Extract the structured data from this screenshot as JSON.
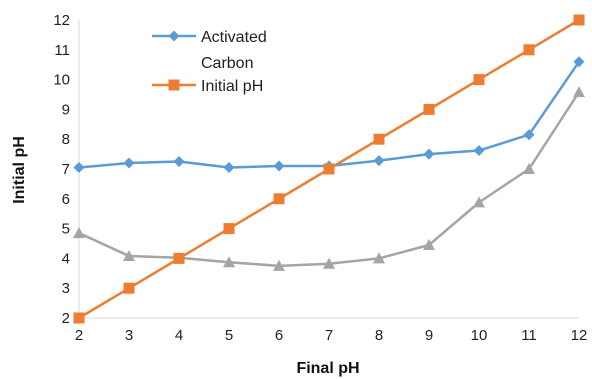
{
  "chart_data": {
    "type": "line",
    "xlabel": "Final pH",
    "ylabel": "Initial pH",
    "x": [
      2,
      3,
      4,
      5,
      6,
      7,
      8,
      9,
      10,
      11,
      12
    ],
    "xlim": [
      2,
      12
    ],
    "ylim": [
      2,
      12
    ],
    "x_ticks": [
      "2",
      "3",
      "4",
      "5",
      "6",
      "7",
      "8",
      "9",
      "10",
      "11",
      "12"
    ],
    "y_ticks": [
      "2",
      "3",
      "4",
      "5",
      "6",
      "7",
      "8",
      "9",
      "10",
      "11",
      "12"
    ],
    "grid": false,
    "legend_position": "top-left",
    "series": [
      {
        "name": "Activated Carbon",
        "legend_lines": [
          "Activated",
          "Carbon"
        ],
        "color": "#5B9BD5",
        "marker": "diamond",
        "values": [
          7.05,
          7.2,
          7.25,
          7.05,
          7.1,
          7.1,
          7.28,
          7.5,
          7.62,
          8.15,
          10.6
        ]
      },
      {
        "name": "Initial pH",
        "legend_lines": [
          "Initial pH"
        ],
        "color": "#ED7D31",
        "marker": "square",
        "values": [
          2,
          3,
          4,
          5,
          6,
          7,
          8,
          9,
          10,
          11,
          12
        ]
      },
      {
        "color": "#A5A5A5",
        "marker": "triangle",
        "values": [
          4.85,
          4.08,
          4.02,
          3.87,
          3.75,
          3.82,
          4.0,
          4.45,
          5.88,
          7.0,
          9.58
        ]
      }
    ]
  }
}
